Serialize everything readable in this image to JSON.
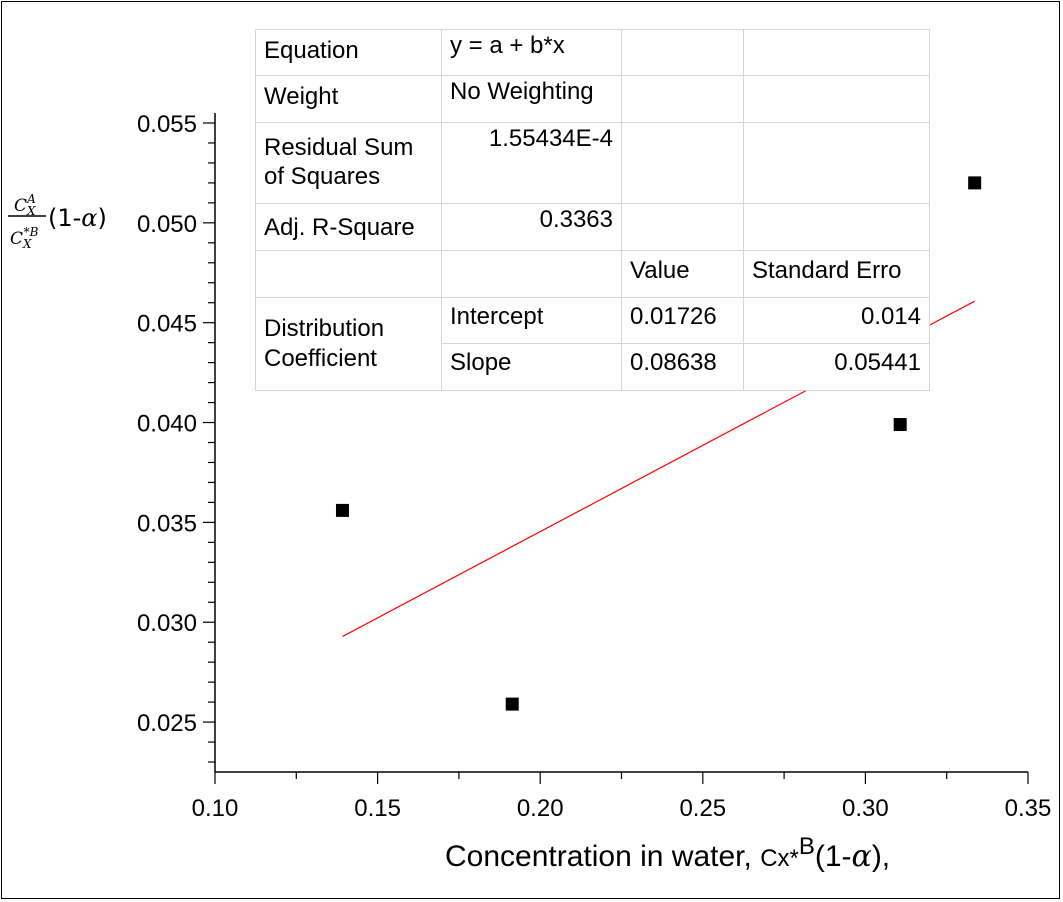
{
  "chart_data": {
    "type": "scatter",
    "xlim": [
      0.1,
      0.35
    ],
    "ylim": [
      0.0225,
      0.0555
    ],
    "x_ticks": [
      "0.10",
      "0.15",
      "0.20",
      "0.25",
      "0.30",
      "0.35"
    ],
    "y_ticks": [
      "0.025",
      "0.030",
      "0.035",
      "0.040",
      "0.045",
      "0.050",
      "0.055"
    ],
    "xlabel": "Concentration in water, ",
    "xlabel_symbol": "Cx*",
    "xlabel_sup": "B",
    "xlabel_suffix": "(1-",
    "xlabel_alpha": "α",
    "xlabel_end": "),",
    "ylabel": {
      "num_base": "C",
      "num_sub": "X",
      "num_sup": "A",
      "den_base": "C",
      "den_sub": "X",
      "den_sup": "*B",
      "factor_open": "(1-",
      "alpha": "α",
      "factor_close": ")"
    },
    "points": [
      {
        "x": 0.1392,
        "y": 0.0356
      },
      {
        "x": 0.1914,
        "y": 0.0259
      },
      {
        "x": 0.3107,
        "y": 0.0399
      },
      {
        "x": 0.3336,
        "y": 0.052
      }
    ],
    "fit_line": {
      "x": [
        0.1392,
        0.3336
      ],
      "intercept": 0.01726,
      "slope": 0.08638
    },
    "colors": {
      "points": "#000000",
      "fit_line": "#ff0000",
      "axes": "#000000"
    },
    "grid": false
  },
  "stats_table": {
    "equation_label": "Equation",
    "equation_value": "y = a + b*x",
    "weight_label": "Weight",
    "weight_value": "No Weighting",
    "rss_label_1": "Residual Sum",
    "rss_label_2": "of Squares",
    "rss_value": "1.55434E-4",
    "adjr_label": "Adj. R-Square",
    "adjr_value": "0.3363",
    "col_value": "Value",
    "col_stderr": "Standard Erro",
    "group_label_1": "Distribution",
    "group_label_2": "Coefficient",
    "intercept_label": "Intercept",
    "intercept_value": "0.01726",
    "intercept_stderr": "0.014",
    "slope_label": "Slope",
    "slope_value": "0.08638",
    "slope_stderr": "0.05441"
  }
}
